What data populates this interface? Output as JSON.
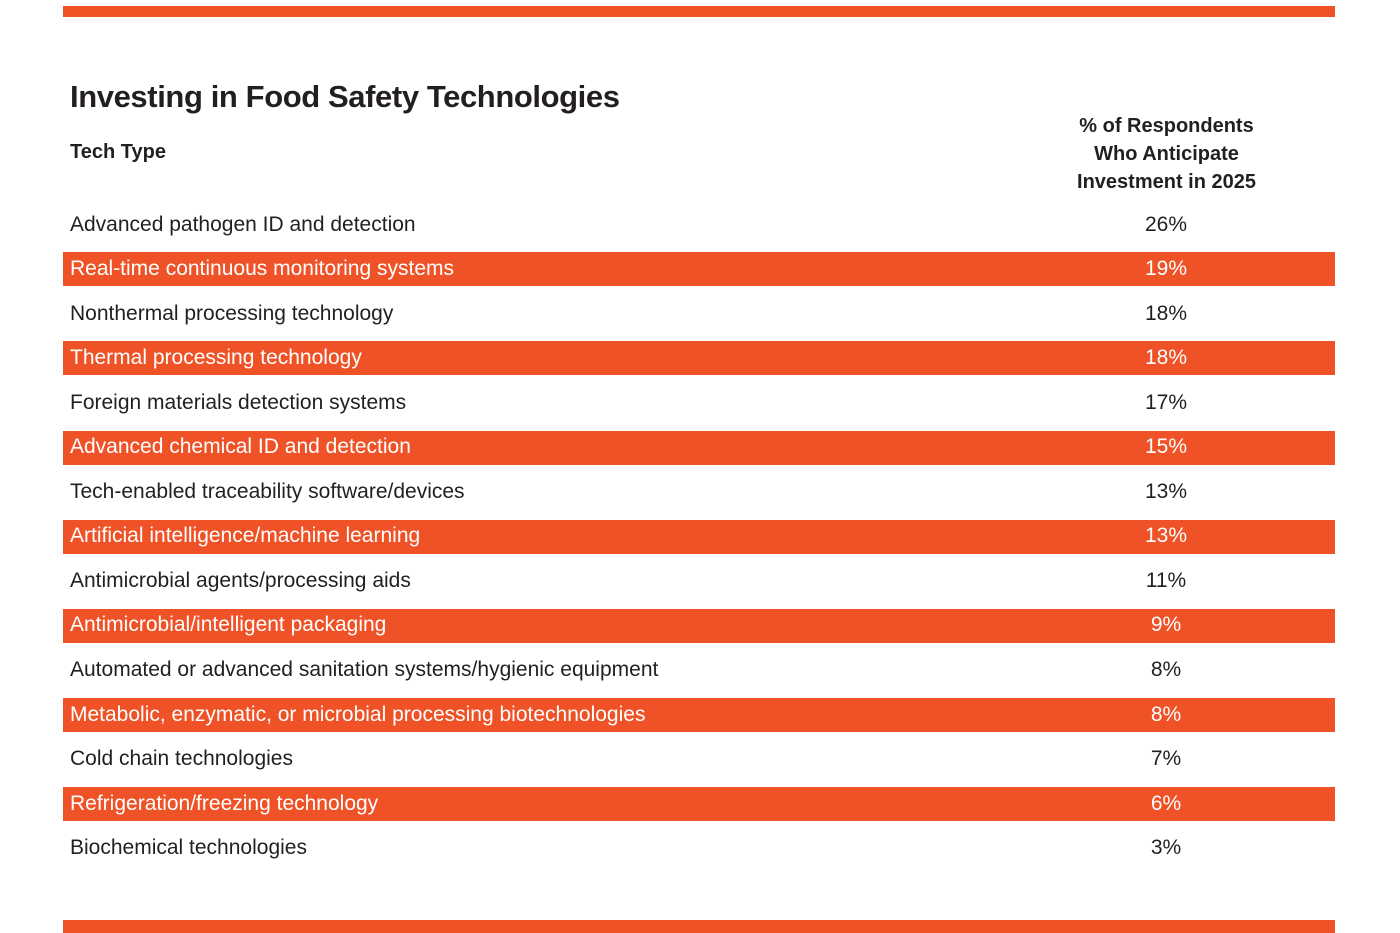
{
  "page": {
    "title": "Investing in Food Safety Technologies",
    "accent_color": "#EE5226",
    "ink_color": "#231F20",
    "background_color": "#FFFFFF"
  },
  "table": {
    "col1_header": "Tech Type",
    "col2_header_lines": [
      "% of Respondents",
      "Who Anticipate",
      "Investment in 2025"
    ]
  },
  "chart_data": {
    "type": "table",
    "title": "Investing in Food Safety Technologies",
    "columns": [
      "Tech Type",
      "% of Respondents Who Anticipate Investment in 2025"
    ],
    "categories": [
      "Advanced pathogen ID and detection",
      "Real-time continuous monitoring systems",
      "Nonthermal processing technology",
      "Thermal processing technology",
      "Foreign materials detection systems",
      "Advanced chemical ID and detection",
      "Tech-enabled traceability software/devices",
      "Artificial intelligence/machine learning",
      "Antimicrobial agents/processing aids",
      "Antimicrobial/intelligent packaging",
      "Automated or advanced sanitation systems/hygienic equipment",
      "Metabolic, enzymatic, or microbial processing biotechnologies",
      "Cold chain technologies",
      "Refrigeration/freezing technology",
      "Biochemical technologies"
    ],
    "values": [
      26,
      19,
      18,
      18,
      17,
      15,
      13,
      13,
      11,
      9,
      8,
      8,
      7,
      6,
      3
    ],
    "value_suffix": "%",
    "highlighted_rows": [
      1,
      3,
      5,
      7,
      9,
      11,
      13
    ],
    "highlight_color": "#EE5226",
    "layout": "striped-table, values column centered at right"
  }
}
